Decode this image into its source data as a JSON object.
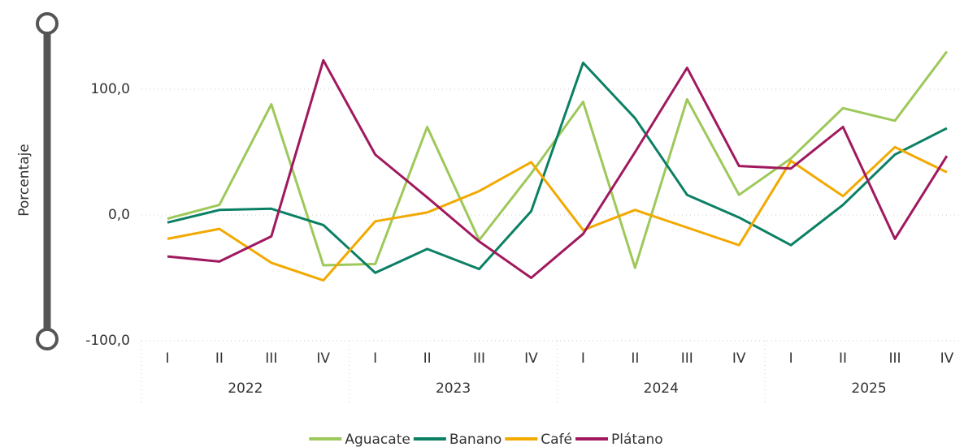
{
  "chart_data": {
    "type": "line",
    "y_label": "Porcentaje",
    "categories": [
      "I",
      "II",
      "III",
      "IV",
      "I",
      "II",
      "III",
      "IV",
      "I",
      "II",
      "III",
      "IV",
      "I",
      "II",
      "III",
      "IV"
    ],
    "groups": [
      {
        "label": "2022",
        "size": 4
      },
      {
        "label": "2023",
        "size": 4
      },
      {
        "label": "2024",
        "size": 4
      },
      {
        "label": "2025",
        "size": 4
      }
    ],
    "series": [
      {
        "name": "Aguacate",
        "color": "#9dc85a",
        "values": [
          -3,
          8,
          88,
          -40,
          -39,
          70,
          -20,
          33,
          90,
          -42,
          92,
          16,
          45,
          85,
          75,
          130
        ]
      },
      {
        "name": "Banano",
        "color": "#0b8064",
        "values": [
          -6,
          4,
          5,
          -8,
          -46,
          -27,
          -43,
          3,
          121,
          77,
          16,
          -2,
          -24,
          8,
          48,
          69
        ]
      },
      {
        "name": "Café",
        "color": "#f2a900",
        "values": [
          -19,
          -11,
          -38,
          -52,
          -5,
          2,
          19,
          42,
          -12,
          4,
          -10,
          -24,
          43,
          15,
          54,
          34
        ]
      },
      {
        "name": "Plátano",
        "color": "#a0195e",
        "values": [
          -33,
          -37,
          -17,
          123,
          48,
          14,
          -21,
          -50,
          -15,
          50,
          117,
          39,
          37,
          70,
          -19,
          47
        ]
      }
    ],
    "ylim": [
      -100,
      135
    ],
    "yticks": [
      {
        "value": -100,
        "label": "-100,0"
      },
      {
        "value": 0,
        "label": "0,0"
      },
      {
        "value": 100,
        "label": "100,0"
      }
    ],
    "grid": true,
    "legend": "bottom"
  }
}
